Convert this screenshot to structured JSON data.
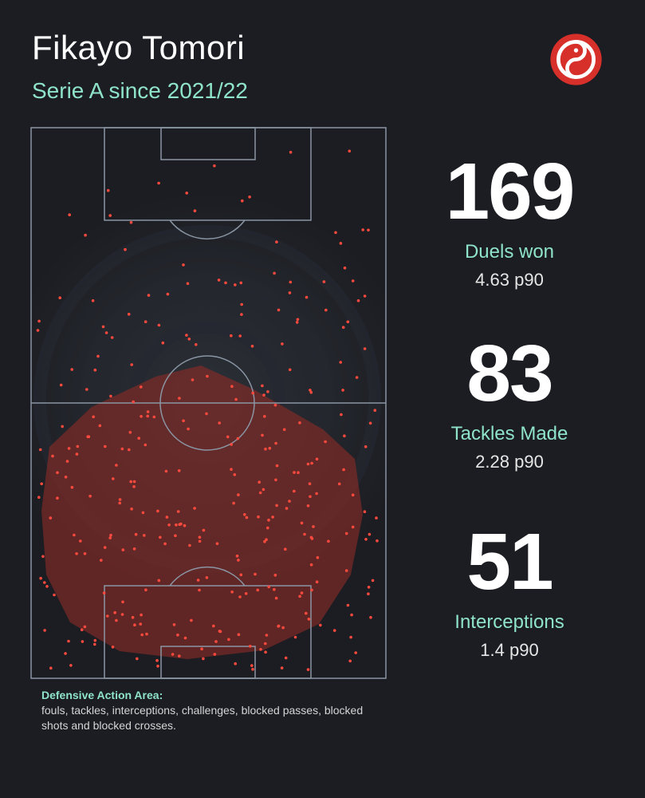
{
  "header": {
    "title": "Fikayo Tomori",
    "subtitle": "Serie A since 2021/22"
  },
  "logo": {
    "icon": "yin-yang-logo-icon",
    "color": "#d7302b"
  },
  "stats": [
    {
      "value": "169",
      "label": "Duels won",
      "per90": "4.63 p90"
    },
    {
      "value": "83",
      "label": "Tackles Made",
      "per90": "2.28 p90"
    },
    {
      "value": "51",
      "label": "Interceptions",
      "per90": "1.4 p90"
    }
  ],
  "footnote": {
    "heading": "Defensive Action Area:",
    "text": "fouls, tackles, interceptions, challenges, blocked passes, blocked shots and blocked crosses."
  },
  "colors": {
    "background": "#1b1d22",
    "accent": "#8ee3c8",
    "action_dot": "#ff4a3d",
    "action_area": "#8a2c27",
    "pitch_lines": "#8a95a3"
  }
}
